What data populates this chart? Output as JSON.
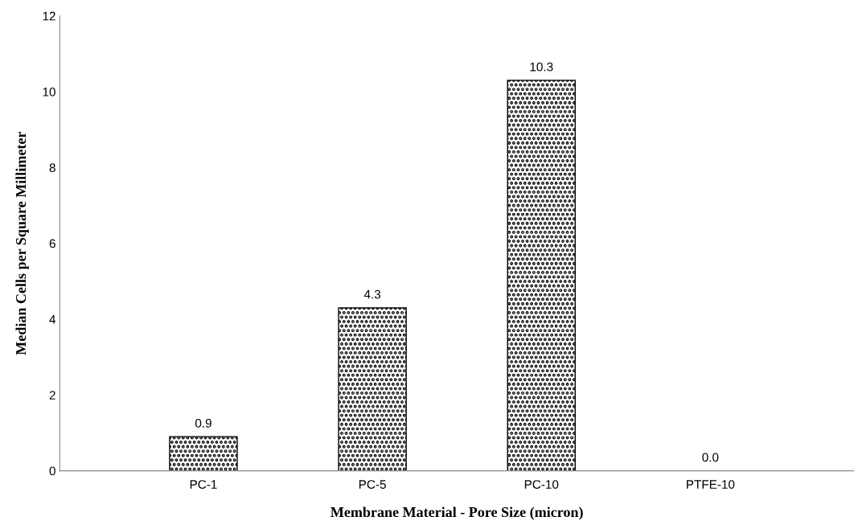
{
  "chart_data": {
    "type": "bar",
    "xlabel": "Membrane Material - Pore Size (micron)",
    "ylabel": "Median Cells per Square Millimeter",
    "categories": [
      "PC-1",
      "PC-5",
      "PC-10",
      "PTFE-10"
    ],
    "values": [
      0.9,
      4.3,
      10.3,
      0.0
    ],
    "value_labels": [
      "0.9",
      "4.3",
      "10.3",
      "0.0"
    ],
    "color": "#000000",
    "ylim": [
      0,
      12
    ],
    "yticks": [
      0,
      2,
      4,
      6,
      8,
      10,
      12
    ],
    "grid": false
  }
}
